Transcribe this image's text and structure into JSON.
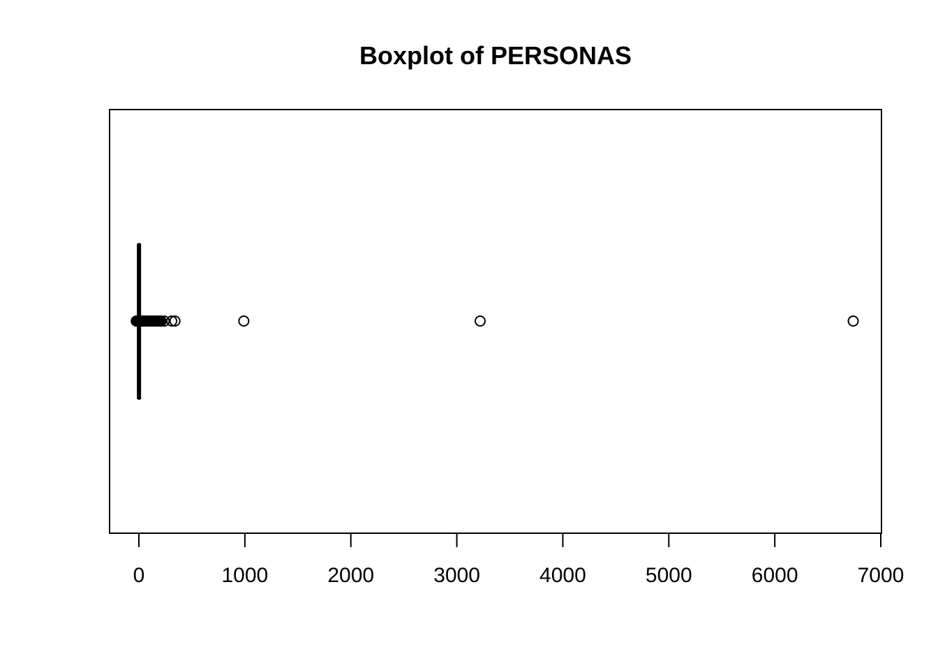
{
  "chart_data": {
    "type": "boxplot",
    "orientation": "horizontal",
    "title": "Boxplot of PERSONAS",
    "xlabel": "",
    "ylabel": "",
    "xlim": [
      -280,
      7000
    ],
    "x_ticks": [
      0,
      1000,
      2000,
      3000,
      4000,
      5000,
      6000,
      7000
    ],
    "x_tick_labels": [
      "0",
      "1000",
      "2000",
      "3000",
      "4000",
      "5000",
      "6000",
      "7000"
    ],
    "grid": false,
    "legend": "none",
    "box": {
      "whisker_low": 1,
      "q1": 1,
      "median": 1,
      "q3": 1,
      "whisker_high": 1
    },
    "outliers": [
      -25,
      -20,
      -15,
      -10,
      -5,
      5,
      10,
      15,
      20,
      25,
      30,
      35,
      40,
      45,
      50,
      55,
      60,
      65,
      70,
      75,
      80,
      85,
      90,
      95,
      100,
      110,
      120,
      130,
      140,
      150,
      160,
      170,
      180,
      190,
      200,
      210,
      240,
      310,
      340,
      990,
      3220,
      6740
    ],
    "colors": {
      "stroke": "#000000",
      "background": "#ffffff"
    }
  }
}
